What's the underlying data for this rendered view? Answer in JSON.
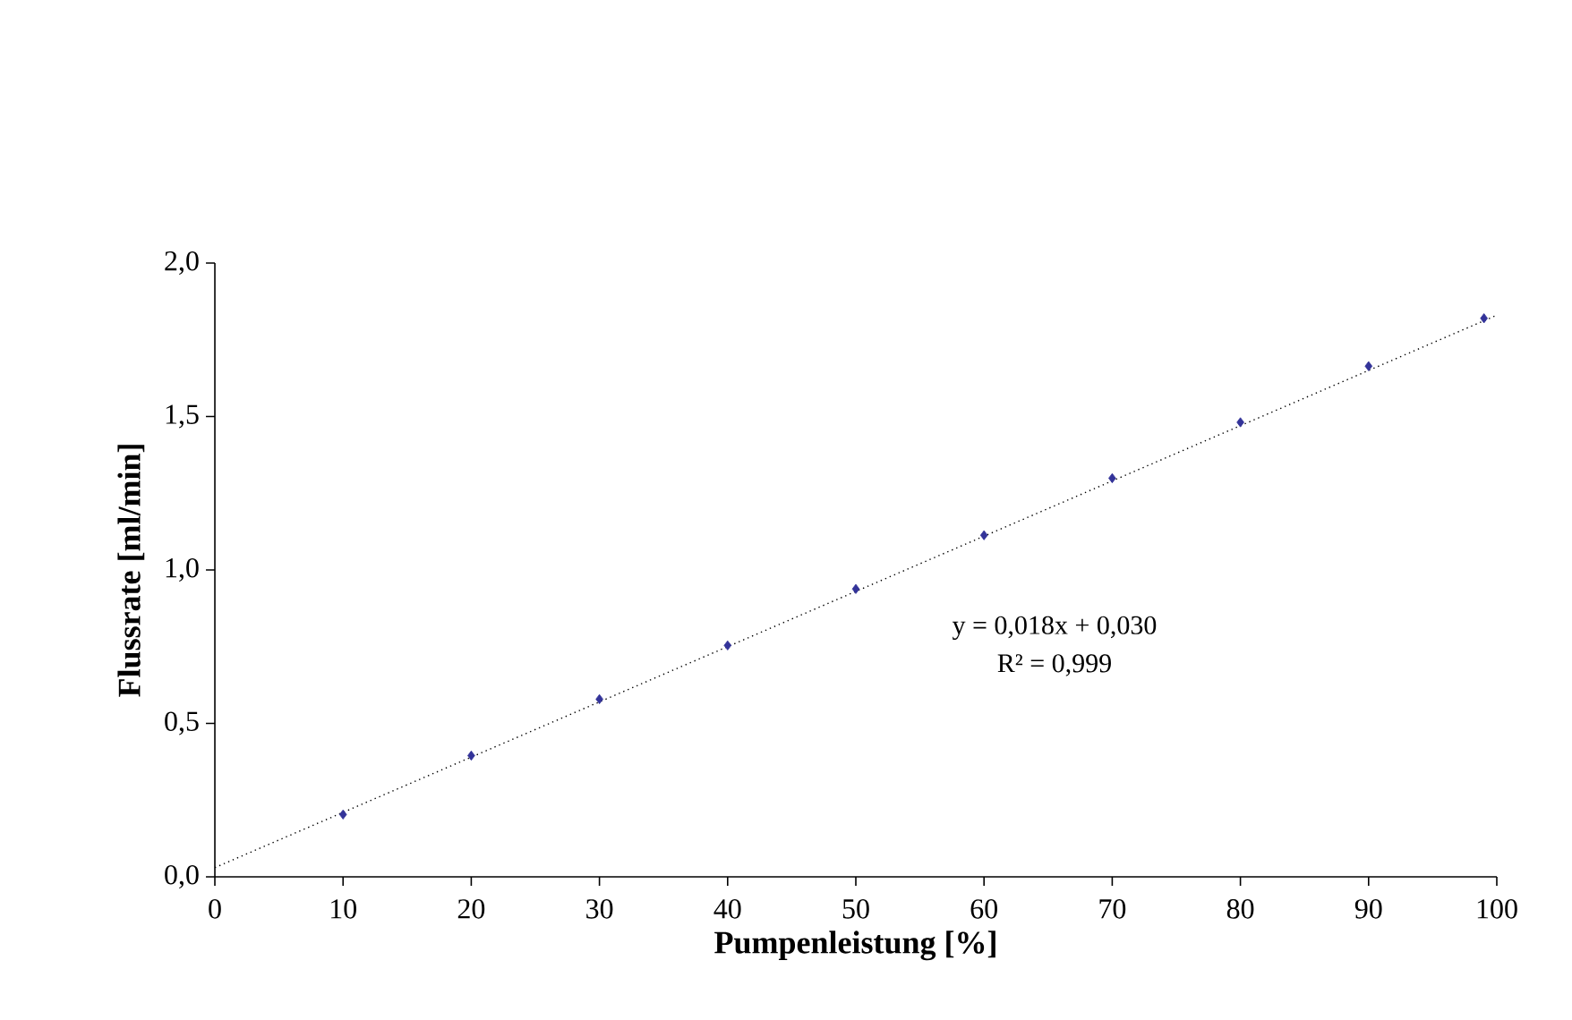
{
  "chart_data": {
    "type": "scatter",
    "xlabel": "Pumpenleistung [%]",
    "ylabel": "Flussrate [ml/min]",
    "annotations": [
      "y = 0,018x + 0,030",
      "R² = 0,999"
    ],
    "series": [
      {
        "color": "#333399",
        "marker": "diamond",
        "x": [
          10,
          20,
          30,
          40,
          50,
          60,
          70,
          80,
          90,
          99
        ],
        "values": [
          0.203,
          0.395,
          0.579,
          0.754,
          0.938,
          1.113,
          1.299,
          1.481,
          1.664,
          1.82
        ]
      },
      {
        "type": "line",
        "color": "#000000",
        "marker": "none",
        "line_style": "dotted",
        "x": [
          0,
          100
        ],
        "values": [
          0.03,
          1.83
        ]
      }
    ],
    "xlim": [
      0,
      100
    ],
    "ylim": [
      0,
      2
    ],
    "xticks": [
      0,
      10,
      20,
      30,
      40,
      50,
      60,
      70,
      80,
      90,
      100
    ],
    "yticks": [
      {
        "value": 0,
        "label": "0,0"
      },
      {
        "value": 0.5,
        "label": "0,5"
      },
      {
        "value": 1,
        "label": "1,0"
      },
      {
        "value": 1.5,
        "label": "1,5"
      },
      {
        "value": 2,
        "label": "2,0"
      }
    ]
  }
}
